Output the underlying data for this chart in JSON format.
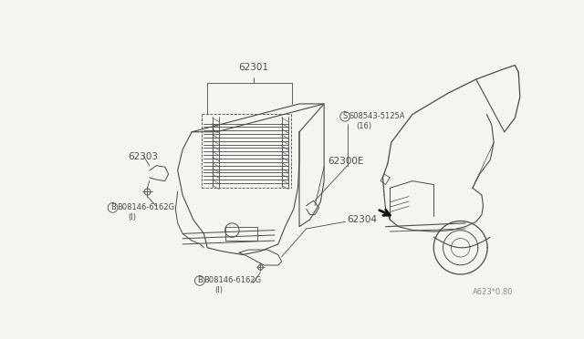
{
  "bg_color": "#f5f5f0",
  "line_color": "#4a4a4a",
  "fig_width": 6.4,
  "fig_height": 3.72,
  "dpi": 100,
  "label_texts": {
    "62301": "62301",
    "62303": "62303",
    "62300E": "62300E",
    "62304": "62304",
    "S_label": "S08543-5125A",
    "S_sub": "(16)",
    "B_label_left": "B08146-6162G",
    "B_sub_left": "(I)",
    "B_label_bottom": "B08146-6162G",
    "B_sub_bottom": "(I)",
    "watermark": "A623*0.80"
  }
}
